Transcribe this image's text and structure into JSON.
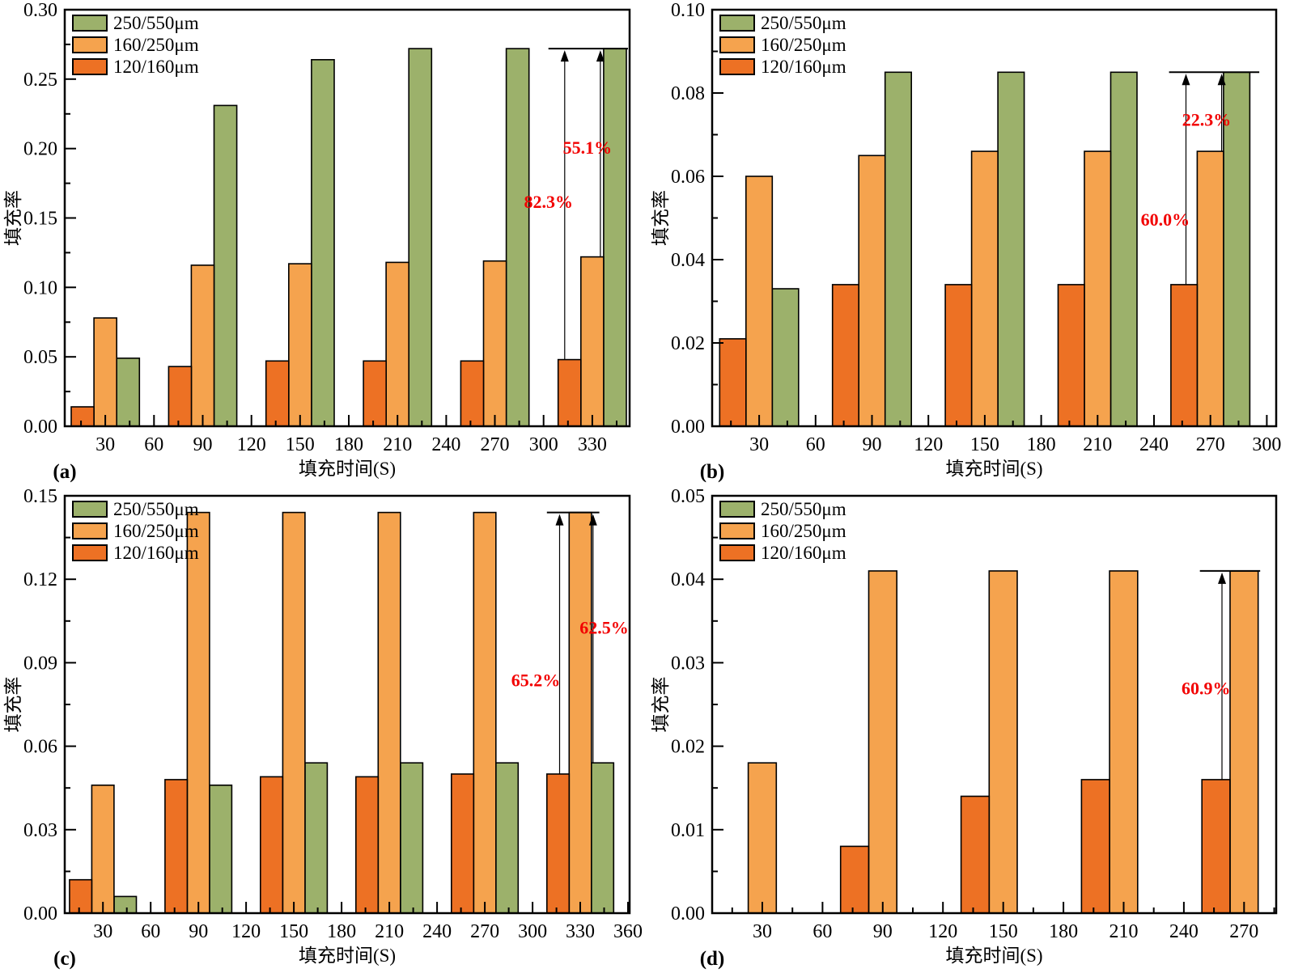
{
  "figure": {
    "colors": {
      "green": "#9cb16b",
      "light_orange": "#f5a34e",
      "dark_orange": "#ed7124",
      "annotation": "#f20000",
      "axis": "#000000",
      "background": "#ffffff"
    },
    "legend_labels": [
      "250/550μm",
      "160/250μm",
      "120/160μm"
    ],
    "x_axis_title": "填充时间(S)",
    "y_axis_title": "填充率"
  },
  "chart_data": [
    {
      "panel_label": "(a)",
      "type": "bar",
      "x_axis_title": "填充时间(S)",
      "y_axis_title": "填充率",
      "legend_position": "top-left",
      "grid": false,
      "x_range": [
        5,
        353
      ],
      "y_range": [
        0,
        0.3
      ],
      "x_major_step": 30,
      "x_minor_step": 15,
      "y_major_step": 0.05,
      "y_minor_step": 0.025,
      "y_tick_decimals": 2,
      "bar_width_units": 14,
      "categories": [
        30,
        90,
        150,
        210,
        270,
        330
      ],
      "series": [
        {
          "name": "250/550μm",
          "color_key": "green",
          "offset_units": 14,
          "values": [
            0.049,
            0.231,
            0.264,
            0.272,
            0.272,
            0.272
          ]
        },
        {
          "name": "160/250μm",
          "color_key": "light_orange",
          "offset_units": 0,
          "values": [
            0.078,
            0.116,
            0.117,
            0.118,
            0.119,
            0.122
          ]
        },
        {
          "name": "120/160μm",
          "color_key": "dark_orange",
          "offset_units": -14,
          "values": [
            0.014,
            0.043,
            0.047,
            0.047,
            0.047,
            0.048
          ]
        }
      ],
      "ref_line": {
        "y": 0.272,
        "x_from": 303,
        "x_to": 352
      },
      "annotations": [
        {
          "text": "82.3%",
          "arrow_x": 313,
          "y_from": 0.048,
          "y_to": 0.272,
          "label_x": 303,
          "label_y": 0.162
        },
        {
          "text": "55.1%",
          "arrow_x": 335,
          "y_from": 0.122,
          "y_to": 0.272,
          "label_x": 327,
          "label_y": 0.201
        }
      ]
    },
    {
      "panel_label": "(b)",
      "type": "bar",
      "x_axis_title": "填充时间(S)",
      "y_axis_title": "填充率",
      "legend_position": "top-left",
      "grid": false,
      "x_range": [
        5,
        305
      ],
      "y_range": [
        0,
        0.1
      ],
      "x_major_step": 30,
      "x_minor_step": 15,
      "y_major_step": 0.02,
      "y_minor_step": 0.01,
      "y_tick_decimals": 2,
      "bar_width_units": 14,
      "categories": [
        30,
        90,
        150,
        210,
        270
      ],
      "series": [
        {
          "name": "250/550μm",
          "color_key": "green",
          "offset_units": 14,
          "values": [
            0.033,
            0.085,
            0.085,
            0.085,
            0.085
          ]
        },
        {
          "name": "160/250μm",
          "color_key": "light_orange",
          "offset_units": 0,
          "values": [
            0.06,
            0.065,
            0.066,
            0.066,
            0.066
          ]
        },
        {
          "name": "120/160μm",
          "color_key": "dark_orange",
          "offset_units": -14,
          "values": [
            0.021,
            0.034,
            0.034,
            0.034,
            0.034
          ]
        }
      ],
      "ref_line": {
        "y": 0.085,
        "x_from": 248,
        "x_to": 296
      },
      "annotations": [
        {
          "text": "60.0%",
          "arrow_x": 257,
          "y_from": 0.034,
          "y_to": 0.085,
          "label_x": 246,
          "label_y": 0.0497
        },
        {
          "text": "22.3%",
          "arrow_x": 276,
          "y_from": 0.066,
          "y_to": 0.085,
          "label_x": 268,
          "label_y": 0.0737
        }
      ]
    },
    {
      "panel_label": "(c)",
      "type": "bar",
      "x_axis_title": "填充时间(S)",
      "y_axis_title": "填充率",
      "legend_position": "top-left",
      "grid": false,
      "x_range": [
        6,
        361
      ],
      "y_range": [
        0,
        0.15
      ],
      "x_major_step": 30,
      "x_minor_step": 15,
      "y_major_step": 0.03,
      "y_minor_step": 0.015,
      "y_tick_decimals": 2,
      "bar_width_units": 14,
      "categories": [
        30,
        90,
        150,
        210,
        270,
        330
      ],
      "series": [
        {
          "name": "250/550μm",
          "color_key": "green",
          "offset_units": 14,
          "values": [
            0.006,
            0.046,
            0.054,
            0.054,
            0.054,
            0.054
          ]
        },
        {
          "name": "160/250μm",
          "color_key": "light_orange",
          "offset_units": 0,
          "values": [
            0.046,
            0.144,
            0.144,
            0.144,
            0.144,
            0.144
          ]
        },
        {
          "name": "120/160μm",
          "color_key": "dark_orange",
          "offset_units": -14,
          "values": [
            0.012,
            0.048,
            0.049,
            0.049,
            0.05,
            0.05
          ]
        }
      ],
      "ref_line": {
        "y": 0.144,
        "x_from": 309,
        "x_to": 342
      },
      "annotations": [
        {
          "text": "65.2%",
          "arrow_x": 317,
          "y_from": 0.05,
          "y_to": 0.144,
          "label_x": 302,
          "label_y": 0.0838
        },
        {
          "text": "62.5%",
          "arrow_x": 338,
          "y_from": 0.054,
          "y_to": 0.144,
          "label_x": 345,
          "label_y": 0.1028
        }
      ]
    },
    {
      "panel_label": "(d)",
      "type": "bar",
      "x_axis_title": "填充时间(S)",
      "y_axis_title": "填充率",
      "legend_position": "top-left",
      "grid": false,
      "x_range": [
        5,
        286
      ],
      "y_range": [
        0,
        0.05
      ],
      "x_major_step": 30,
      "x_minor_step": 15,
      "y_major_step": 0.01,
      "y_minor_step": 0.005,
      "y_tick_decimals": 2,
      "bar_width_units": 14,
      "categories": [
        30,
        90,
        150,
        210,
        270
      ],
      "series": [
        {
          "name": "250/550μm",
          "color_key": "green",
          "offset_units": 14,
          "values": [
            null,
            null,
            null,
            null,
            null
          ]
        },
        {
          "name": "160/250μm",
          "color_key": "light_orange",
          "offset_units": 0,
          "values": [
            0.018,
            0.041,
            0.041,
            0.041,
            0.041
          ]
        },
        {
          "name": "120/160μm",
          "color_key": "dark_orange",
          "offset_units": -14,
          "values": [
            null,
            0.008,
            0.014,
            0.016,
            0.016
          ]
        }
      ],
      "ref_line": {
        "y": 0.041,
        "x_from": 248,
        "x_to": 278
      },
      "annotations": [
        {
          "text": "60.9%",
          "arrow_x": 259,
          "y_from": 0.016,
          "y_to": 0.041,
          "label_x": 251,
          "label_y": 0.027
        }
      ]
    }
  ]
}
